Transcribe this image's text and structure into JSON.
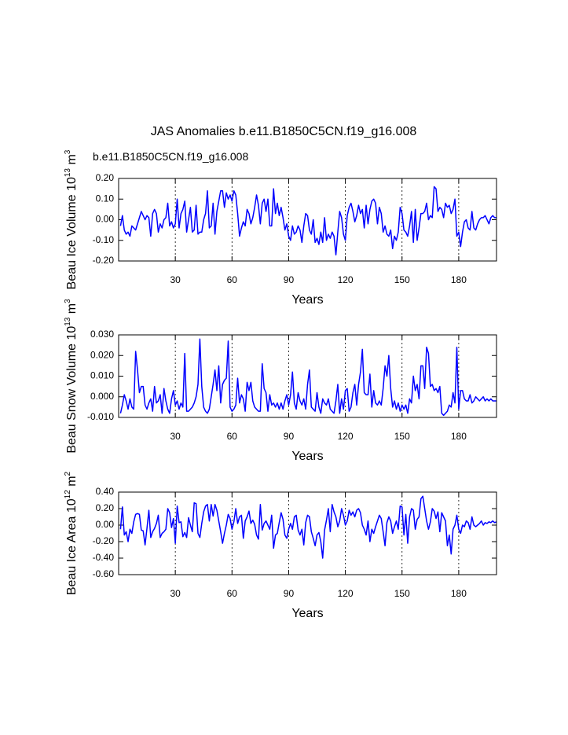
{
  "chart_data": [
    {
      "type": "line",
      "title": "JAS Anomalies b.e11.B1850C5CN.f19_g16.008",
      "subtitle": "b.e11.B1850C5CN.f19_g16.008",
      "subtitle_color": "#0000ff",
      "ylabel": [
        "Beau Ice Volume 10",
        "13",
        " m",
        "3"
      ],
      "xlabel": "Years",
      "color": "#0000ff",
      "xgrid": true,
      "xlim": [
        0,
        200
      ],
      "xticks": [
        30,
        60,
        90,
        120,
        150,
        180
      ],
      "ylim": [
        -0.2,
        0.2
      ],
      "yticks": [
        {
          "value": -0.2,
          "label": "-0.20"
        },
        {
          "value": -0.1,
          "label": "-0.10"
        },
        {
          "value": 0,
          "label": "0.00"
        },
        {
          "value": 0.1,
          "label": "0.10"
        },
        {
          "value": 0.2,
          "label": "0.20"
        }
      ],
      "x": [
        1,
        2,
        3,
        4,
        5,
        6,
        7,
        8,
        9,
        10,
        11,
        12,
        13,
        14,
        15,
        16,
        17,
        18,
        19,
        20,
        21,
        22,
        23,
        24,
        25,
        26,
        27,
        28,
        29,
        30,
        31,
        32,
        33,
        34,
        35,
        36,
        37,
        38,
        39,
        40,
        41,
        42,
        43,
        44,
        45,
        46,
        47,
        48,
        49,
        50,
        51,
        52,
        53,
        54,
        55,
        56,
        57,
        58,
        59,
        60,
        61,
        62,
        63,
        64,
        65,
        66,
        67,
        68,
        69,
        70,
        71,
        72,
        73,
        74,
        75,
        76,
        77,
        78,
        79,
        80,
        81,
        82,
        83,
        84,
        85,
        86,
        87,
        88,
        89,
        90,
        91,
        92,
        93,
        94,
        95,
        96,
        97,
        98,
        99,
        100,
        101,
        102,
        103,
        104,
        105,
        106,
        107,
        108,
        109,
        110,
        111,
        112,
        113,
        114,
        115,
        116,
        117,
        118,
        119,
        120,
        121,
        122,
        123,
        124,
        125,
        126,
        127,
        128,
        129,
        130,
        131,
        132,
        133,
        134,
        135,
        136,
        137,
        138,
        139,
        140,
        141,
        142,
        143,
        144,
        145,
        146,
        147,
        148,
        149,
        150,
        151,
        152,
        153,
        154,
        155,
        156,
        157,
        158,
        159,
        160,
        161,
        162,
        163,
        164,
        165,
        166,
        167,
        168,
        169,
        170,
        171,
        172,
        173,
        174,
        175,
        176,
        177,
        178,
        179,
        180,
        181,
        182,
        183,
        184,
        185,
        186,
        187,
        188,
        189,
        190,
        191,
        192,
        193,
        194,
        195,
        196,
        197,
        198,
        199,
        200
      ],
      "values": [
        -0.03,
        0.02,
        -0.05,
        -0.07,
        -0.06,
        -0.08,
        -0.03,
        -0.04,
        -0.05,
        -0.02,
        0.01,
        0.04,
        0.02,
        0.0,
        0.02,
        0.01,
        -0.08,
        0.03,
        0.05,
        0.03,
        -0.06,
        -0.02,
        -0.04,
        0.0,
        0.01,
        0.08,
        -0.03,
        -0.01,
        -0.04,
        -0.02,
        0.1,
        -0.04,
        0.03,
        0.05,
        0.09,
        -0.06,
        0.0,
        0.06,
        -0.06,
        -0.05,
        0.07,
        -0.07,
        -0.06,
        -0.06,
        0.0,
        0.03,
        0.14,
        -0.04,
        -0.03,
        0.08,
        -0.07,
        0.04,
        0.09,
        0.14,
        0.14,
        0.06,
        0.13,
        0.1,
        0.12,
        0.09,
        0.14,
        0.12,
        0.03,
        -0.08,
        -0.04,
        -0.01,
        -0.03,
        0.05,
        0.03,
        -0.02,
        0.01,
        0.06,
        0.12,
        0.07,
        -0.02,
        0.08,
        0.1,
        0.04,
        0.1,
        -0.03,
        -0.03,
        0.15,
        0.03,
        0.08,
        0.02,
        0.06,
        0.01,
        -0.05,
        -0.02,
        -0.08,
        -0.1,
        -0.03,
        -0.07,
        -0.06,
        -0.03,
        -0.05,
        -0.11,
        -0.03,
        0.03,
        0.02,
        -0.05,
        -0.07,
        0.0,
        -0.11,
        -0.09,
        -0.12,
        -0.06,
        -0.11,
        0.01,
        -0.1,
        -0.07,
        -0.09,
        -0.06,
        -0.08,
        -0.17,
        -0.06,
        0.04,
        0.01,
        -0.07,
        -0.1,
        0.02,
        0.06,
        0.08,
        0.04,
        -0.01,
        0.02,
        0.07,
        0.03,
        0.05,
        -0.04,
        0.07,
        -0.02,
        0.05,
        0.09,
        0.1,
        0.08,
        -0.02,
        0.06,
        0.03,
        -0.06,
        -0.03,
        -0.07,
        -0.08,
        -0.05,
        -0.14,
        -0.08,
        -0.1,
        -0.06,
        0.06,
        0.03,
        -0.05,
        -0.06,
        -0.08,
        -0.03,
        0.04,
        -0.11,
        0.05,
        -0.1,
        -0.04,
        0.03,
        0.03,
        0.04,
        0.08,
        0.0,
        0.02,
        0.01,
        0.16,
        0.15,
        0.04,
        0.06,
        0.05,
        0.01,
        0.08,
        0.06,
        0.07,
        0.03,
        0.05,
        0.1,
        -0.08,
        -0.06,
        -0.13,
        -0.06,
        -0.01,
        0.0,
        -0.04,
        -0.05,
        0.04,
        -0.04,
        -0.05,
        -0.02,
        0.0,
        0.01,
        0.01,
        0.02,
        0.0,
        -0.02,
        0.01,
        0.02,
        0.01,
        0.01
      ]
    },
    {
      "type": "line",
      "ylabel": [
        "Beau Snow Volume 10",
        "13",
        " m",
        "3"
      ],
      "xlabel": "Years",
      "color": "#0000ff",
      "xgrid": true,
      "xlim": [
        0,
        200
      ],
      "xticks": [
        30,
        60,
        90,
        120,
        150,
        180
      ],
      "ylim": [
        -0.01,
        0.03
      ],
      "yticks": [
        {
          "value": -0.01,
          "label": "-0.010"
        },
        {
          "value": 0,
          "label": "0.000"
        },
        {
          "value": 0.01,
          "label": "0.010"
        },
        {
          "value": 0.02,
          "label": "0.020"
        },
        {
          "value": 0.03,
          "label": "0.030"
        }
      ],
      "x": [
        1,
        2,
        3,
        4,
        5,
        6,
        7,
        8,
        9,
        10,
        11,
        12,
        13,
        14,
        15,
        16,
        17,
        18,
        19,
        20,
        21,
        22,
        23,
        24,
        25,
        26,
        27,
        28,
        29,
        30,
        31,
        32,
        33,
        34,
        35,
        36,
        37,
        38,
        39,
        40,
        41,
        42,
        43,
        44,
        45,
        46,
        47,
        48,
        49,
        50,
        51,
        52,
        53,
        54,
        55,
        56,
        57,
        58,
        59,
        60,
        61,
        62,
        63,
        64,
        65,
        66,
        67,
        68,
        69,
        70,
        71,
        72,
        73,
        74,
        75,
        76,
        77,
        78,
        79,
        80,
        81,
        82,
        83,
        84,
        85,
        86,
        87,
        88,
        89,
        90,
        91,
        92,
        93,
        94,
        95,
        96,
        97,
        98,
        99,
        100,
        101,
        102,
        103,
        104,
        105,
        106,
        107,
        108,
        109,
        110,
        111,
        112,
        113,
        114,
        115,
        116,
        117,
        118,
        119,
        120,
        121,
        122,
        123,
        124,
        125,
        126,
        127,
        128,
        129,
        130,
        131,
        132,
        133,
        134,
        135,
        136,
        137,
        138,
        139,
        140,
        141,
        142,
        143,
        144,
        145,
        146,
        147,
        148,
        149,
        150,
        151,
        152,
        153,
        154,
        155,
        156,
        157,
        158,
        159,
        160,
        161,
        162,
        163,
        164,
        165,
        166,
        167,
        168,
        169,
        170,
        171,
        172,
        173,
        174,
        175,
        176,
        177,
        178,
        179,
        180,
        181,
        182,
        183,
        184,
        185,
        186,
        187,
        188,
        189,
        190,
        191,
        192,
        193,
        194,
        195,
        196,
        197,
        198,
        199,
        200
      ],
      "values": [
        -0.008,
        -0.004,
        0.001,
        -0.002,
        -0.006,
        -0.001,
        -0.005,
        -0.006,
        0.022,
        0.013,
        0.002,
        0.005,
        0.005,
        -0.004,
        -0.006,
        -0.003,
        -0.001,
        -0.007,
        0.005,
        -0.003,
        -0.002,
        0.001,
        -0.008,
        0.004,
        -0.002,
        -0.006,
        -0.008,
        -0.001,
        0.003,
        -0.004,
        -0.002,
        -0.006,
        -0.003,
        -0.005,
        0.021,
        -0.007,
        -0.007,
        -0.006,
        -0.005,
        -0.003,
        0.0,
        0.006,
        0.028,
        0.005,
        -0.005,
        -0.007,
        -0.008,
        -0.006,
        0.0,
        0.006,
        0.013,
        0.003,
        0.015,
        -0.003,
        0.006,
        0.008,
        0.009,
        0.027,
        -0.005,
        -0.007,
        -0.006,
        -0.004,
        0.009,
        -0.003,
        0.001,
        -0.001,
        -0.007,
        0.007,
        0.003,
        0.007,
        -0.002,
        -0.005,
        -0.006,
        -0.007,
        -0.007,
        0.016,
        0.004,
        0.002,
        -0.007,
        0.001,
        -0.004,
        -0.003,
        -0.005,
        -0.003,
        -0.006,
        -0.003,
        -0.006,
        -0.002,
        0.001,
        -0.004,
        0.001,
        0.012,
        -0.003,
        -0.006,
        0.002,
        -0.002,
        -0.004,
        -0.001,
        -0.006,
        0.006,
        0.013,
        -0.005,
        -0.006,
        -0.007,
        0.002,
        -0.005,
        -0.008,
        -0.001,
        -0.003,
        -0.004,
        -0.001,
        -0.006,
        -0.007,
        -0.008,
        -0.002,
        0.006,
        -0.008,
        -0.001,
        -0.006,
        0.003,
        0.004,
        -0.007,
        -0.005,
        0.002,
        0.006,
        -0.004,
        0.006,
        0.012,
        0.023,
        0.002,
        0.001,
        0.001,
        0.011,
        -0.005,
        0.003,
        -0.003,
        -0.004,
        -0.002,
        -0.004,
        0.004,
        0.015,
        0.01,
        0.02,
        0.004,
        -0.005,
        -0.002,
        -0.006,
        -0.003,
        -0.007,
        -0.004,
        -0.006,
        -0.004,
        -0.008,
        -0.001,
        -0.003,
        0.01,
        0.003,
        0.006,
        -0.001,
        0.015,
        0.015,
        0.004,
        0.024,
        0.021,
        0.005,
        0.006,
        0.003,
        0.004,
        0.002,
        0.005,
        -0.008,
        -0.009,
        -0.008,
        -0.007,
        -0.004,
        -0.005,
        0.002,
        -0.003,
        0.024,
        -0.006,
        0.003,
        0.003,
        -0.001,
        -0.002,
        -0.002,
        0.001,
        -0.003,
        -0.002,
        0.0,
        -0.001,
        -0.002,
        -0.001,
        0.0,
        -0.002,
        -0.001,
        -0.002,
        -0.001,
        -0.002,
        -0.002,
        -0.002
      ]
    },
    {
      "type": "line",
      "ylabel": [
        "Beau Ice Area 10",
        "12",
        " m",
        "2"
      ],
      "xlabel": "Years",
      "color": "#0000ff",
      "xgrid": true,
      "xlim": [
        0,
        200
      ],
      "xticks": [
        30,
        60,
        90,
        120,
        150,
        180
      ],
      "ylim": [
        -0.6,
        0.4
      ],
      "yticks": [
        {
          "value": -0.6,
          "label": "-0.60"
        },
        {
          "value": -0.4,
          "label": "-0.40"
        },
        {
          "value": -0.2,
          "label": "-0.20"
        },
        {
          "value": 0,
          "label": "0.00"
        },
        {
          "value": 0.2,
          "label": "0.20"
        },
        {
          "value": 0.4,
          "label": "0.40"
        }
      ],
      "x": [
        1,
        2,
        3,
        4,
        5,
        6,
        7,
        8,
        9,
        10,
        11,
        12,
        13,
        14,
        15,
        16,
        17,
        18,
        19,
        20,
        21,
        22,
        23,
        24,
        25,
        26,
        27,
        28,
        29,
        30,
        31,
        32,
        33,
        34,
        35,
        36,
        37,
        38,
        39,
        40,
        41,
        42,
        43,
        44,
        45,
        46,
        47,
        48,
        49,
        50,
        51,
        52,
        53,
        54,
        55,
        56,
        57,
        58,
        59,
        60,
        61,
        62,
        63,
        64,
        65,
        66,
        67,
        68,
        69,
        70,
        71,
        72,
        73,
        74,
        75,
        76,
        77,
        78,
        79,
        80,
        81,
        82,
        83,
        84,
        85,
        86,
        87,
        88,
        89,
        90,
        91,
        92,
        93,
        94,
        95,
        96,
        97,
        98,
        99,
        100,
        101,
        102,
        103,
        104,
        105,
        106,
        107,
        108,
        109,
        110,
        111,
        112,
        113,
        114,
        115,
        116,
        117,
        118,
        119,
        120,
        121,
        122,
        123,
        124,
        125,
        126,
        127,
        128,
        129,
        130,
        131,
        132,
        133,
        134,
        135,
        136,
        137,
        138,
        139,
        140,
        141,
        142,
        143,
        144,
        145,
        146,
        147,
        148,
        149,
        150,
        151,
        152,
        153,
        154,
        155,
        156,
        157,
        158,
        159,
        160,
        161,
        162,
        163,
        164,
        165,
        166,
        167,
        168,
        169,
        170,
        171,
        172,
        173,
        174,
        175,
        176,
        177,
        178,
        179,
        180,
        181,
        182,
        183,
        184,
        185,
        186,
        187,
        188,
        189,
        190,
        191,
        192,
        193,
        194,
        195,
        196,
        197,
        198,
        199,
        200
      ],
      "values": [
        -0.05,
        0.22,
        -0.12,
        -0.08,
        -0.2,
        -0.05,
        -0.1,
        0.04,
        0.13,
        0.14,
        0.13,
        -0.06,
        -0.07,
        -0.24,
        -0.04,
        0.18,
        -0.15,
        -0.08,
        -0.04,
        0.02,
        0.12,
        -0.15,
        -0.1,
        -0.08,
        -0.05,
        0.2,
        0.15,
        -0.03,
        0.08,
        -0.22,
        0.23,
        0.03,
        0.04,
        -0.14,
        -0.09,
        -0.15,
        0.09,
        0.0,
        -0.08,
        0.27,
        0.26,
        -0.1,
        -0.15,
        0.02,
        0.16,
        0.23,
        0.25,
        0.05,
        0.25,
        0.11,
        0.25,
        0.18,
        0.05,
        -0.08,
        -0.22,
        -0.1,
        0.0,
        0.13,
        0.08,
        -0.05,
        0.04,
        0.2,
        0.02,
        0.1,
        0.12,
        -0.16,
        0.05,
        0.1,
        0.17,
        0.02,
        0.06,
        0.01,
        -0.12,
        -0.17,
        0.25,
        -0.06,
        0.02,
        0.05,
        0.0,
        -0.05,
        0.12,
        -0.28,
        -0.12,
        -0.1,
        0.03,
        0.15,
        0.07,
        -0.12,
        -0.16,
        -0.05,
        0.02,
        -0.05,
        0.1,
        0.12,
        -0.06,
        -0.12,
        -0.05,
        -0.24,
        0.03,
        0.12,
        0.1,
        -0.08,
        -0.16,
        -0.25,
        -0.12,
        -0.09,
        -0.2,
        -0.4,
        -0.06,
        0.06,
        0.2,
        -0.08,
        0.25,
        0.16,
        0.1,
        -0.02,
        0.05,
        0.2,
        0.12,
        0.0,
        0.05,
        0.18,
        0.12,
        0.16,
        0.1,
        0.18,
        0.2,
        0.15,
        0.0,
        -0.05,
        -0.12,
        0.05,
        -0.2,
        -0.05,
        -0.1,
        -0.02,
        0.05,
        0.12,
        0.08,
        -0.08,
        -0.25,
        0.03,
        0.1,
        0.05,
        -0.1,
        -0.02,
        0.05,
        -0.05,
        0.23,
        0.22,
        -0.12,
        0.13,
        -0.22,
        0.1,
        0.2,
        0.18,
        -0.05,
        0.07,
        0.1,
        0.32,
        0.35,
        0.2,
        0.05,
        -0.05,
        0.04,
        0.2,
        0.17,
        0.08,
        0.16,
        -0.08,
        0.15,
        0.1,
        0.05,
        -0.25,
        -0.12,
        -0.35,
        -0.05,
        0.0,
        0.12,
        -0.05,
        -0.1,
        0.0,
        -0.02,
        0.05,
        0.03,
        -0.05,
        0.1,
        0.0,
        -0.02,
        0.0,
        0.02,
        0.05,
        0.0,
        0.03,
        0.02,
        0.04,
        0.03,
        0.05,
        0.03,
        0.04
      ]
    }
  ]
}
